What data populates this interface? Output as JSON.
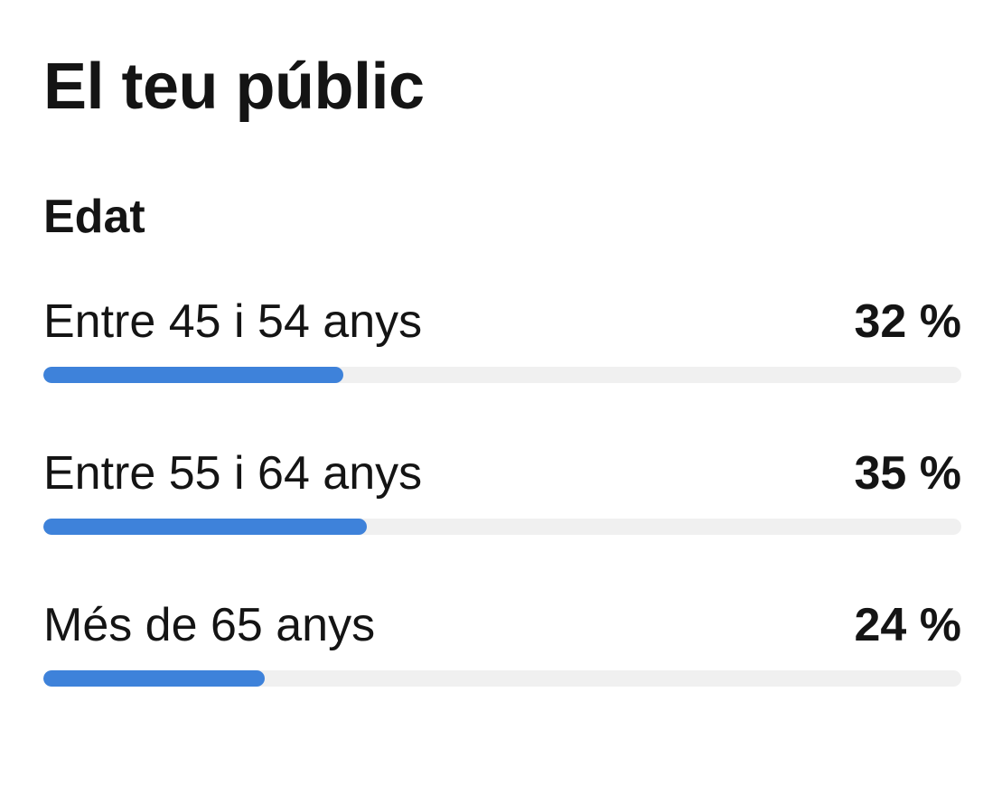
{
  "header": {
    "title": "El teu públic"
  },
  "age": {
    "section_title": "Edat",
    "accent_color": "#3e82da",
    "track_color": "#f0f0f0",
    "rows": [
      {
        "label": "Entre 45 i 54 anys",
        "value_text": "32 %",
        "fraction": 0.327
      },
      {
        "label": "Entre 55 i 64 anys",
        "value_text": "35 %",
        "fraction": 0.352
      },
      {
        "label": "Més de 65 anys",
        "value_text": "24 %",
        "fraction": 0.241
      }
    ]
  }
}
